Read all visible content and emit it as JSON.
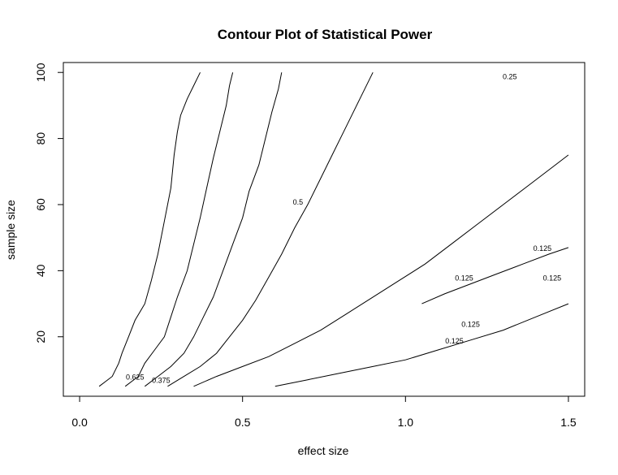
{
  "chart_data": {
    "type": "contour",
    "title": "Contour Plot of Statistical Power",
    "xlabel": "effect size",
    "ylabel": "sample size",
    "xlim": [
      -0.05,
      1.55
    ],
    "ylim": [
      2,
      103
    ],
    "x_ticks": [
      {
        "value": 0.0,
        "label": "0.0"
      },
      {
        "value": 0.5,
        "label": "0.5"
      },
      {
        "value": 1.0,
        "label": "1.0"
      },
      {
        "value": 1.5,
        "label": "1.5"
      }
    ],
    "y_ticks": [
      {
        "value": 20,
        "label": "20"
      },
      {
        "value": 40,
        "label": "40"
      },
      {
        "value": 60,
        "label": "60"
      },
      {
        "value": 80,
        "label": "80"
      },
      {
        "value": 100,
        "label": "100"
      }
    ],
    "grid": false,
    "legend": "none",
    "line_color": "#000000",
    "contour_labels": [
      {
        "text": "0.625",
        "x": 0.17,
        "y": 7
      },
      {
        "text": "0.375",
        "x": 0.25,
        "y": 6
      },
      {
        "text": "0.5",
        "x": 0.67,
        "y": 60
      },
      {
        "text": "0.125",
        "x": 1.42,
        "y": 46
      },
      {
        "text": "0.125",
        "x": 1.18,
        "y": 37
      },
      {
        "text": "0.125",
        "x": 1.45,
        "y": 37
      },
      {
        "text": "0.125",
        "x": 1.2,
        "y": 23
      },
      {
        "text": "0.125",
        "x": 1.15,
        "y": 18
      },
      {
        "text": "0.25",
        "x": 1.32,
        "y": 98
      }
    ],
    "contour_lines": [
      {
        "points": [
          [
            0.06,
            5
          ],
          [
            0.1,
            8
          ],
          [
            0.12,
            12
          ],
          [
            0.13,
            15
          ],
          [
            0.15,
            20
          ],
          [
            0.17,
            25
          ],
          [
            0.2,
            30
          ],
          [
            0.22,
            37
          ],
          [
            0.24,
            45
          ],
          [
            0.26,
            55
          ],
          [
            0.28,
            65
          ],
          [
            0.29,
            75
          ],
          [
            0.3,
            82
          ],
          [
            0.31,
            87
          ],
          [
            0.33,
            92
          ],
          [
            0.35,
            96
          ],
          [
            0.37,
            100
          ]
        ]
      },
      {
        "points": [
          [
            0.14,
            5
          ],
          [
            0.18,
            8
          ],
          [
            0.2,
            12
          ],
          [
            0.23,
            16
          ],
          [
            0.26,
            20
          ],
          [
            0.28,
            26
          ],
          [
            0.3,
            32
          ],
          [
            0.33,
            40
          ],
          [
            0.35,
            48
          ],
          [
            0.37,
            56
          ],
          [
            0.39,
            65
          ],
          [
            0.41,
            74
          ],
          [
            0.43,
            82
          ],
          [
            0.45,
            90
          ],
          [
            0.46,
            96
          ],
          [
            0.47,
            100
          ]
        ]
      },
      {
        "points": [
          [
            0.2,
            5
          ],
          [
            0.24,
            8
          ],
          [
            0.28,
            11
          ],
          [
            0.32,
            15
          ],
          [
            0.35,
            20
          ],
          [
            0.38,
            26
          ],
          [
            0.41,
            32
          ],
          [
            0.44,
            40
          ],
          [
            0.47,
            48
          ],
          [
            0.5,
            56
          ],
          [
            0.52,
            64
          ],
          [
            0.55,
            72
          ],
          [
            0.57,
            80
          ],
          [
            0.59,
            88
          ],
          [
            0.61,
            95
          ],
          [
            0.62,
            100
          ]
        ]
      },
      {
        "points": [
          [
            0.27,
            5
          ],
          [
            0.32,
            8
          ],
          [
            0.37,
            11
          ],
          [
            0.42,
            15
          ],
          [
            0.46,
            20
          ],
          [
            0.5,
            25
          ],
          [
            0.54,
            31
          ],
          [
            0.58,
            38
          ],
          [
            0.62,
            45
          ],
          [
            0.66,
            53
          ],
          [
            0.7,
            60
          ],
          [
            0.74,
            68
          ],
          [
            0.78,
            76
          ],
          [
            0.82,
            84
          ],
          [
            0.86,
            92
          ],
          [
            0.9,
            100
          ]
        ]
      },
      {
        "points": [
          [
            0.35,
            5
          ],
          [
            0.42,
            8
          ],
          [
            0.5,
            11
          ],
          [
            0.58,
            14
          ],
          [
            0.66,
            18
          ],
          [
            0.74,
            22
          ],
          [
            0.82,
            27
          ],
          [
            0.9,
            32
          ],
          [
            0.98,
            37
          ],
          [
            1.06,
            42
          ],
          [
            1.14,
            48
          ],
          [
            1.22,
            54
          ],
          [
            1.3,
            60
          ],
          [
            1.38,
            66
          ],
          [
            1.46,
            72
          ],
          [
            1.5,
            75
          ]
        ]
      },
      {
        "points": [
          [
            0.6,
            5
          ],
          [
            0.7,
            7
          ],
          [
            0.8,
            9
          ],
          [
            0.9,
            11
          ],
          [
            1.0,
            13
          ],
          [
            1.1,
            16
          ],
          [
            1.2,
            19
          ],
          [
            1.3,
            22
          ],
          [
            1.4,
            26
          ],
          [
            1.5,
            30
          ]
        ]
      },
      {
        "points": [
          [
            1.05,
            30
          ],
          [
            1.12,
            33
          ],
          [
            1.2,
            36
          ],
          [
            1.28,
            39
          ],
          [
            1.36,
            42
          ],
          [
            1.44,
            45
          ],
          [
            1.5,
            47
          ]
        ]
      }
    ]
  }
}
